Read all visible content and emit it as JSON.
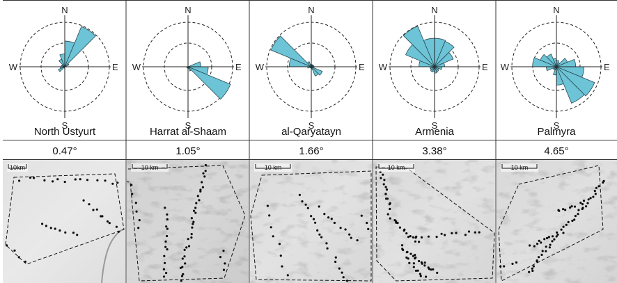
{
  "compass": {
    "north": "N",
    "south": "S",
    "east": "E",
    "west": "W"
  },
  "scale_label": "10 km",
  "petal_color": "#6cc4d6",
  "panels": [
    {
      "name": "North Ustyurt",
      "angle": "0.47°",
      "scale_label": "10km",
      "rose": [
        0.56,
        0.95,
        0.1,
        0.03,
        0.0,
        0.0,
        0.0,
        0.0,
        0.03,
        0.03,
        0.15,
        0.1,
        0.08,
        0.06,
        0.18,
        0.28
      ]
    },
    {
      "name": "Harrat al-Shaam",
      "angle": "1.05°",
      "scale_label": "10 km",
      "rose": [
        0.0,
        0.0,
        0.0,
        0.28,
        0.44,
        1.0,
        0.1,
        0.03,
        0.0,
        0.03,
        0.03,
        0.03,
        0.0,
        0.0,
        0.0,
        0.0
      ]
    },
    {
      "name": "al-Qaryatayn",
      "angle": "1.66°",
      "scale_label": "10 km",
      "rose": [
        0.05,
        0.05,
        0.05,
        0.06,
        0.06,
        0.26,
        0.22,
        0.05,
        0.03,
        0.03,
        0.03,
        0.08,
        0.48,
        0.95,
        0.12,
        0.05
      ]
    },
    {
      "name": "Armenia",
      "angle": "3.38°",
      "scale_label": "10 km",
      "rose": [
        0.62,
        0.6,
        0.44,
        0.22,
        0.16,
        0.1,
        0.12,
        0.14,
        0.1,
        0.12,
        0.1,
        0.1,
        0.34,
        0.68,
        0.96,
        0.62
      ]
    },
    {
      "name": "Palmyra",
      "angle": "4.65°",
      "scale_label": "10 km",
      "rose": [
        0.14,
        0.1,
        0.26,
        0.42,
        0.6,
        0.9,
        0.86,
        0.4,
        0.18,
        0.08,
        0.08,
        0.22,
        0.52,
        0.38,
        0.3,
        0.18
      ]
    }
  ]
}
